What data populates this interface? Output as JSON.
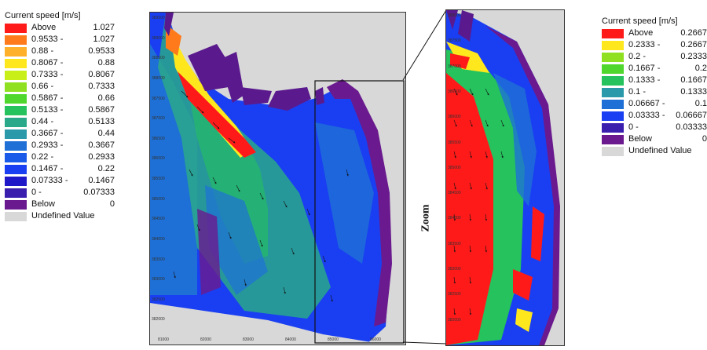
{
  "colors": {
    "above": "#ff1a1a",
    "c1": "#ff7a1a",
    "c2": "#ffb02a",
    "c3": "#ffe71e",
    "c4": "#c8f018",
    "c5": "#8fe020",
    "c6": "#4fd72e",
    "c7": "#25c25e",
    "c8": "#2aa88a",
    "c9": "#2a9aaa",
    "c10": "#1e70d6",
    "c11": "#1a3ff2",
    "c12": "#1f18c8",
    "c13": "#3a1fae",
    "below": "#6a1a8e",
    "undefined": "#d8d8d8"
  },
  "legend_left": {
    "title": "Current speed [m/s]",
    "items": [
      {
        "label": "Above",
        "value": "1.027",
        "color": "#ff1a1a"
      },
      {
        "label": "0.9533 -",
        "value": "1.027",
        "color": "#ff7a1a"
      },
      {
        "label": "0.88 -",
        "value": "0.9533",
        "color": "#ffb02a"
      },
      {
        "label": "0.8067 -",
        "value": "0.88",
        "color": "#ffe71e"
      },
      {
        "label": "0.7333 -",
        "value": "0.8067",
        "color": "#c8f018"
      },
      {
        "label": "0.66 -",
        "value": "0.7333",
        "color": "#8fe020"
      },
      {
        "label": "0.5867 -",
        "value": "0.66",
        "color": "#4fd72e"
      },
      {
        "label": "0.5133 -",
        "value": "0.5867",
        "color": "#25c25e"
      },
      {
        "label": "0.44 -",
        "value": "0.5133",
        "color": "#2aa88a"
      },
      {
        "label": "0.3667 -",
        "value": "0.44",
        "color": "#2a9aaa"
      },
      {
        "label": "0.2933 -",
        "value": "0.3667",
        "color": "#1e70d6"
      },
      {
        "label": "0.22 -",
        "value": "0.2933",
        "color": "#1a5ae8"
      },
      {
        "label": "0.1467 -",
        "value": "0.22",
        "color": "#1a3ff2"
      },
      {
        "label": "0.07333 -",
        "value": "0.1467",
        "color": "#1f18c8"
      },
      {
        "label": "0 -",
        "value": "0.07333",
        "color": "#3a1fae"
      },
      {
        "label": "Below",
        "value": "0",
        "color": "#6a1a8e"
      },
      {
        "label": "Undefined Value",
        "value": "",
        "color": "#d8d8d8"
      }
    ]
  },
  "legend_right": {
    "title": "Current speed [m/s]",
    "items": [
      {
        "label": "Above",
        "value": "0.2667",
        "color": "#ff1a1a"
      },
      {
        "label": "0.2333 -",
        "value": "0.2667",
        "color": "#ffe71e"
      },
      {
        "label": "0.2 -",
        "value": "0.2333",
        "color": "#8fe020"
      },
      {
        "label": "0.1667 -",
        "value": "0.2",
        "color": "#4fd72e"
      },
      {
        "label": "0.1333 -",
        "value": "0.1667",
        "color": "#25c25e"
      },
      {
        "label": "0.1 -",
        "value": "0.1333",
        "color": "#2a9aaa"
      },
      {
        "label": "0.06667 -",
        "value": "0.1",
        "color": "#1e70d6"
      },
      {
        "label": "0.03333 -",
        "value": "0.06667",
        "color": "#1a3ff2"
      },
      {
        "label": "0 -",
        "value": "0.03333",
        "color": "#3a1fae"
      },
      {
        "label": "Below",
        "value": "0",
        "color": "#6a1a8e"
      },
      {
        "label": "Undefined Value",
        "value": "",
        "color": "#d8d8d8"
      }
    ]
  },
  "main_map": {
    "y_ticks": [
      "389500",
      "389000",
      "388500",
      "388000",
      "387500",
      "387000",
      "386500",
      "386000",
      "385500",
      "385000",
      "384500",
      "384000",
      "383500",
      "383000",
      "382500",
      "382000"
    ],
    "x_ticks": [
      "81000",
      "82000",
      "83000",
      "84000",
      "85000",
      "86000"
    ]
  },
  "zoom_map": {
    "label": "Zoom",
    "y_ticks": [
      "388000",
      "387500",
      "387000",
      "386500",
      "386000",
      "385500",
      "385000",
      "384500",
      "384000",
      "383500",
      "383000",
      "382500",
      "382000"
    ]
  }
}
